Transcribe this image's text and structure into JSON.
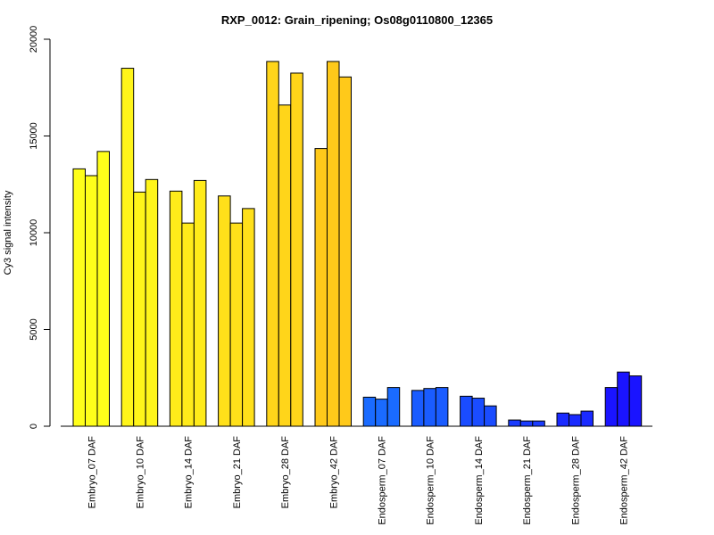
{
  "chart_data": {
    "type": "bar",
    "title": "RXP_0012: Grain_ripening; Os08g0110800_12365",
    "ylabel": "Cy3 signal intensity",
    "xlabel": "",
    "ylim": [
      0,
      20000
    ],
    "yticks": [
      0,
      5000,
      10000,
      15000,
      20000
    ],
    "grid": false,
    "categories": [
      "Embryo_07 DAF",
      "Embryo_10 DAF",
      "Embryo_14 DAF",
      "Embryo_21 DAF",
      "Embryo_28 DAF",
      "Embryo_42 DAF",
      "Endosperm_07 DAF",
      "Endosperm_10 DAF",
      "Endosperm_14 DAF",
      "Endosperm_21 DAF",
      "Endosperm_28 DAF",
      "Endosperm_42 DAF"
    ],
    "colors": [
      "#FFFF1A",
      "#FFF51A",
      "#FFEB1A",
      "#FFE01A",
      "#FFD51A",
      "#FFC91A",
      "#1A6BFF",
      "#1A5CFF",
      "#1A4CFF",
      "#1A3CFF",
      "#1A2AFF",
      "#1A14FF"
    ],
    "replicates": [
      [
        13300,
        12950,
        14200
      ],
      [
        18500,
        12100,
        12750
      ],
      [
        12150,
        10500,
        12700
      ],
      [
        11900,
        10500,
        11250
      ],
      [
        18850,
        16600,
        18250
      ],
      [
        14350,
        18850,
        18050
      ],
      [
        1500,
        1400,
        2000
      ],
      [
        1850,
        1950,
        2000
      ],
      [
        1550,
        1450,
        1050
      ],
      [
        320,
        270,
        270
      ],
      [
        680,
        600,
        780
      ],
      [
        2000,
        2800,
        2600
      ]
    ]
  }
}
